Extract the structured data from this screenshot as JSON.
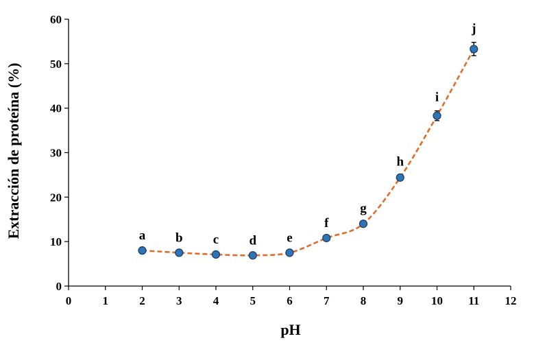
{
  "chart_data": {
    "type": "scatter",
    "xlabel": "pH",
    "ylabel": "Extracción de proteína (%)",
    "xlim": [
      0,
      12
    ],
    "ylim": [
      0,
      60
    ],
    "x_ticks": [
      "0",
      "1",
      "2",
      "3",
      "4",
      "5",
      "6",
      "7",
      "8",
      "9",
      "10",
      "11",
      "12"
    ],
    "y_ticks": [
      "0",
      "10",
      "20",
      "30",
      "40",
      "50",
      "60"
    ],
    "grid": false,
    "legend": "none",
    "colors": {
      "marker": "#2e75b6",
      "marker_edge": "#1f3864",
      "trend": "#e46c2a",
      "axis": "#000000"
    },
    "points": [
      {
        "x": 2,
        "y": 8.0,
        "error": 0.3,
        "label": "a"
      },
      {
        "x": 3,
        "y": 7.5,
        "error": 0.3,
        "label": "b"
      },
      {
        "x": 4,
        "y": 7.1,
        "error": 0.3,
        "label": "c"
      },
      {
        "x": 5,
        "y": 6.9,
        "error": 0.3,
        "label": "d"
      },
      {
        "x": 6,
        "y": 7.5,
        "error": 0.3,
        "label": "e"
      },
      {
        "x": 7,
        "y": 10.8,
        "error": 0.3,
        "label": "f"
      },
      {
        "x": 8,
        "y": 14.0,
        "error": 0.4,
        "label": "g"
      },
      {
        "x": 9,
        "y": 24.4,
        "error": 0.5,
        "label": "h"
      },
      {
        "x": 10,
        "y": 38.3,
        "error": 1.1,
        "label": "i"
      },
      {
        "x": 11,
        "y": 53.3,
        "error": 1.5,
        "label": "j"
      }
    ]
  }
}
